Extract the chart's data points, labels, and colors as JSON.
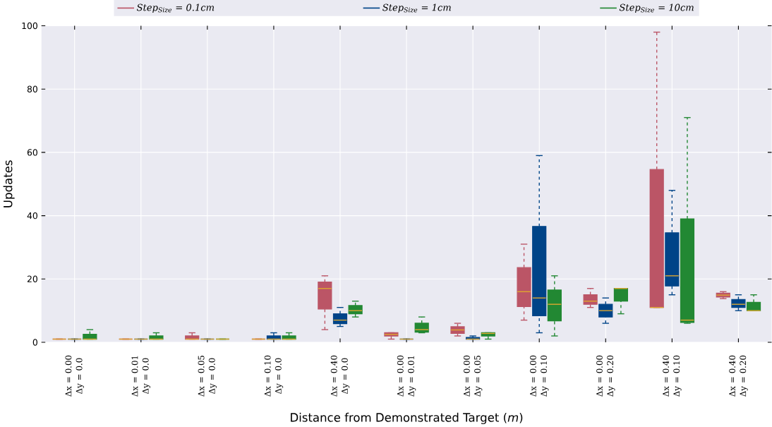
{
  "chart_data": {
    "type": "box",
    "xlabel": "Distance from Demonstrated Target (*m*)",
    "ylabel": "Updates",
    "categories": [
      "Δx = 0.00 Δy = 0.0",
      "Δx = 0.01 Δy = 0.0",
      "Δx = 0.05 Δy = 0.0",
      "Δx = 0.10 Δy = 0.0",
      "Δx = 0.40 Δy = 0.0",
      "Δx = 0.00 Δy = 0.01",
      "Δx = 0.00 Δy = 0.05",
      "Δx = 0.00 Δy = 0.10",
      "Δx = 0.00 Δy = 0.20",
      "Δx = 0.40 Δy = 0.10",
      "Δx = 0.40 Δy = 0.20"
    ],
    "series": [
      {
        "name": "Step$_{Size}$ = 0.1cm",
        "color": "#bb5566",
        "boxes": [
          {
            "low": 1,
            "q1": 1,
            "median": 1,
            "q3": 1,
            "high": 1
          },
          {
            "low": 1,
            "q1": 1,
            "median": 1,
            "q3": 1,
            "high": 1
          },
          {
            "low": 1,
            "q1": 1,
            "median": 1,
            "q3": 2,
            "high": 3
          },
          {
            "low": 1,
            "q1": 1,
            "median": 1,
            "q3": 1,
            "high": 1
          },
          {
            "low": 4,
            "q1": 10.5,
            "median": 17,
            "q3": 19,
            "high": 21
          },
          {
            "low": 1,
            "q1": 2,
            "median": 2.5,
            "q3": 3,
            "high": 3
          },
          {
            "low": 2,
            "q1": 2.8,
            "median": 3.9,
            "q3": 4.9,
            "high": 6
          },
          {
            "low": 7,
            "q1": 11.3,
            "median": 16,
            "q3": 23.6,
            "high": 31
          },
          {
            "low": 11,
            "q1": 12,
            "median": 13,
            "q3": 15,
            "high": 17
          },
          {
            "low": 11,
            "q1": 11,
            "median": 11,
            "q3": 54.6,
            "high": 98
          },
          {
            "low": 13.8,
            "q1": 14.3,
            "median": 14.9,
            "q3": 15.5,
            "high": 16
          }
        ]
      },
      {
        "name": "Step$_{Size}$ = 1cm",
        "color": "#004488",
        "boxes": [
          {
            "low": 1,
            "q1": 1,
            "median": 1,
            "q3": 1,
            "high": 1
          },
          {
            "low": 1,
            "q1": 1,
            "median": 1,
            "q3": 1,
            "high": 1
          },
          {
            "low": 1,
            "q1": 1,
            "median": 1,
            "q3": 1,
            "high": 1
          },
          {
            "low": 1,
            "q1": 1,
            "median": 1,
            "q3": 2,
            "high": 3
          },
          {
            "low": 5,
            "q1": 5.9,
            "median": 7,
            "q3": 9,
            "high": 11
          },
          {
            "low": 1,
            "q1": 1,
            "median": 1,
            "q3": 1,
            "high": 1
          },
          {
            "low": 1,
            "q1": 1,
            "median": 1,
            "q3": 1.5,
            "high": 2
          },
          {
            "low": 3,
            "q1": 8.4,
            "median": 14,
            "q3": 36.6,
            "high": 59
          },
          {
            "low": 6,
            "q1": 8,
            "median": 10,
            "q3": 12,
            "high": 14
          },
          {
            "low": 15,
            "q1": 17.8,
            "median": 21,
            "q3": 34.6,
            "high": 48
          },
          {
            "low": 10,
            "q1": 11,
            "median": 12,
            "q3": 13.5,
            "high": 15
          }
        ]
      },
      {
        "name": "Step$_{Size}$ = 10cm",
        "color": "#228833",
        "boxes": [
          {
            "low": 1,
            "q1": 1,
            "median": 1,
            "q3": 2.5,
            "high": 4
          },
          {
            "low": 1,
            "q1": 1,
            "median": 1,
            "q3": 2,
            "high": 3
          },
          {
            "low": 1,
            "q1": 1,
            "median": 1,
            "q3": 1,
            "high": 1
          },
          {
            "low": 1,
            "q1": 1,
            "median": 1,
            "q3": 2,
            "high": 3
          },
          {
            "low": 8,
            "q1": 9,
            "median": 10,
            "q3": 11.6,
            "high": 13
          },
          {
            "low": 3,
            "q1": 3.2,
            "median": 4,
            "q3": 6,
            "high": 8
          },
          {
            "low": 1,
            "q1": 2,
            "median": 2.8,
            "q3": 3,
            "high": 3
          },
          {
            "low": 2,
            "q1": 6.8,
            "median": 12,
            "q3": 16.5,
            "high": 21
          },
          {
            "low": 9,
            "q1": 13,
            "median": 17,
            "q3": 17,
            "high": 17
          },
          {
            "low": 6,
            "q1": 6.3,
            "median": 7,
            "q3": 39,
            "high": 71
          },
          {
            "low": 10,
            "q1": 10,
            "median": 10,
            "q3": 12.6,
            "high": 15
          }
        ]
      }
    ],
    "ylim": [
      0,
      100
    ],
    "yticks": [
      0,
      20,
      40,
      60,
      80,
      100
    ],
    "grid": true,
    "legend": "top",
    "line_style": "dashed"
  }
}
